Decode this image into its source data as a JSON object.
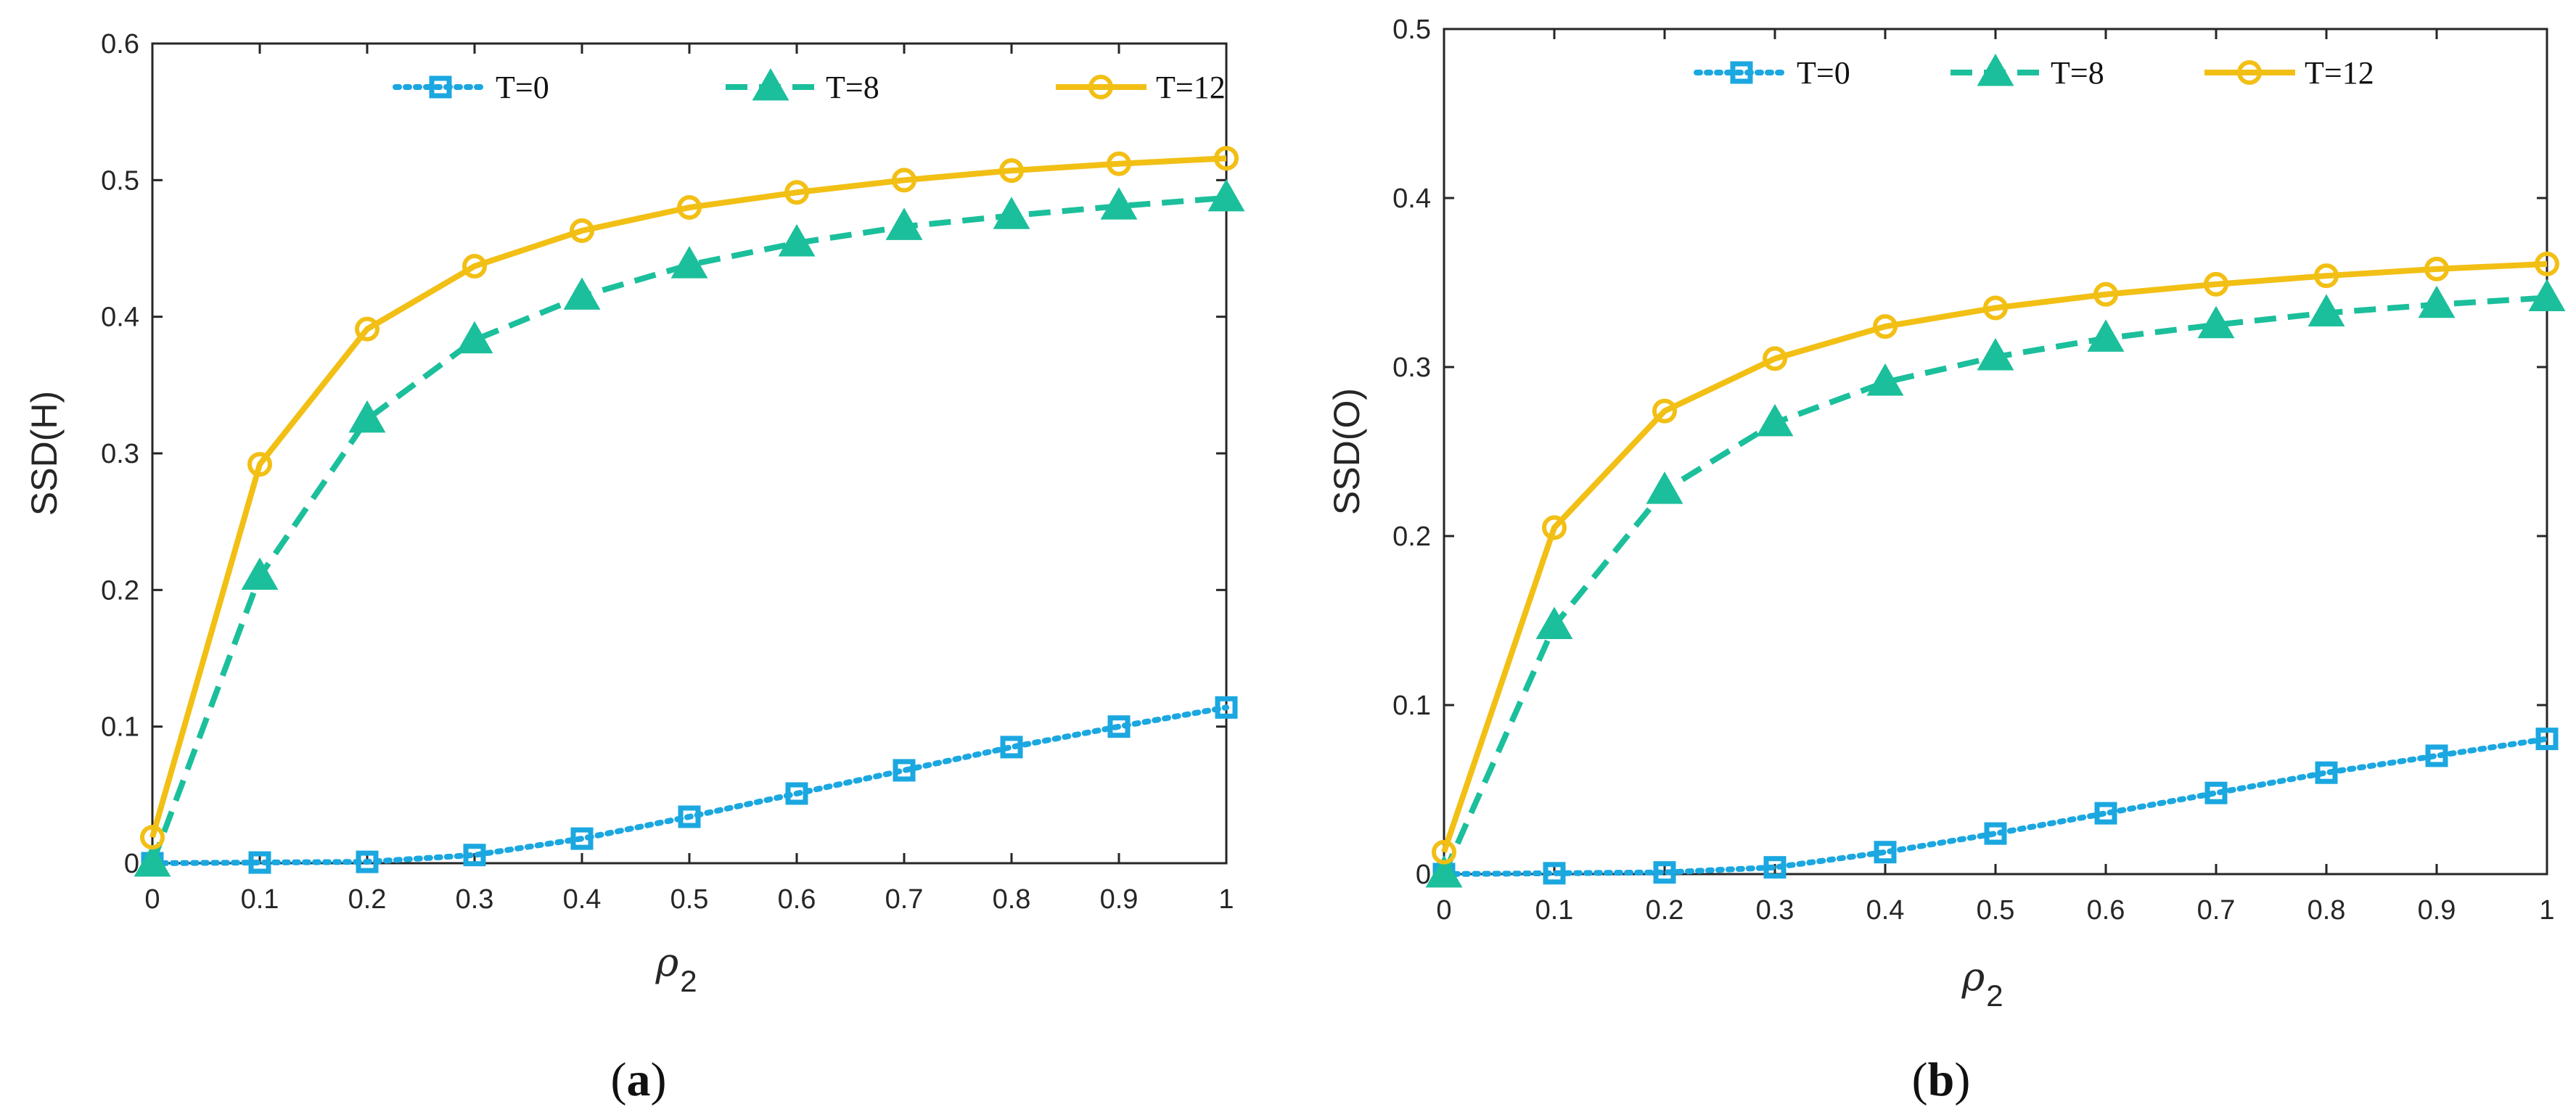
{
  "colors": {
    "T0": "#1ba7e0",
    "T8": "#1bbf9b",
    "T12": "#f2bf14",
    "axis": "#262626"
  },
  "chart_data": [
    {
      "type": "line",
      "panel": "a",
      "caption": {
        "open": "(",
        "letter": "a",
        "close": ")"
      },
      "xlabel": {
        "symbol": "ρ",
        "sub": "2"
      },
      "ylabel": "SSD(H)",
      "xlim": [
        0,
        1
      ],
      "ylim": [
        0,
        0.6
      ],
      "xticks": [
        "0",
        "0.1",
        "0.2",
        "0.3",
        "0.4",
        "0.5",
        "0.6",
        "0.7",
        "0.8",
        "0.9",
        "1"
      ],
      "yticks": [
        "0",
        "0.1",
        "0.2",
        "0.3",
        "0.4",
        "0.5",
        "0.6"
      ],
      "legend_position": "top-center",
      "x": [
        0,
        0.1,
        0.2,
        0.3,
        0.4,
        0.5,
        0.6,
        0.7,
        0.8,
        0.9,
        1.0
      ],
      "series": [
        {
          "name": "T=0",
          "marker": "square",
          "line": "dotted",
          "values": [
            0,
            0.0005,
            0.001,
            0.006,
            0.018,
            0.034,
            0.051,
            0.068,
            0.085,
            0.1,
            0.114
          ]
        },
        {
          "name": "T=8",
          "marker": "triangle",
          "line": "dashed",
          "values": [
            0,
            0.21,
            0.325,
            0.383,
            0.415,
            0.438,
            0.454,
            0.466,
            0.474,
            0.481,
            0.487
          ]
        },
        {
          "name": "T=12",
          "marker": "circle",
          "line": "solid",
          "values": [
            0.019,
            0.292,
            0.391,
            0.437,
            0.463,
            0.48,
            0.491,
            0.5,
            0.507,
            0.512,
            0.516
          ]
        }
      ]
    },
    {
      "type": "line",
      "panel": "b",
      "caption": {
        "open": "(",
        "letter": "b",
        "close": ")"
      },
      "xlabel": {
        "symbol": "ρ",
        "sub": "2"
      },
      "ylabel": "SSD(O)",
      "xlim": [
        0,
        1
      ],
      "ylim": [
        0,
        0.5
      ],
      "xticks": [
        "0",
        "0.1",
        "0.2",
        "0.3",
        "0.4",
        "0.5",
        "0.6",
        "0.7",
        "0.8",
        "0.9",
        "1"
      ],
      "yticks": [
        "0",
        "0.1",
        "0.2",
        "0.3",
        "0.4",
        "0.5"
      ],
      "legend_position": "top-center",
      "x": [
        0,
        0.1,
        0.2,
        0.3,
        0.4,
        0.5,
        0.6,
        0.7,
        0.8,
        0.9,
        1.0
      ],
      "series": [
        {
          "name": "T=0",
          "marker": "square",
          "line": "dotted",
          "values": [
            0,
            0.0005,
            0.001,
            0.004,
            0.013,
            0.024,
            0.036,
            0.048,
            0.06,
            0.07,
            0.08
          ]
        },
        {
          "name": "T=8",
          "marker": "triangle",
          "line": "dashed",
          "values": [
            0,
            0.147,
            0.227,
            0.267,
            0.291,
            0.306,
            0.317,
            0.325,
            0.332,
            0.337,
            0.341
          ]
        },
        {
          "name": "T=12",
          "marker": "circle",
          "line": "solid",
          "values": [
            0.013,
            0.205,
            0.274,
            0.305,
            0.324,
            0.335,
            0.343,
            0.349,
            0.354,
            0.358,
            0.361
          ]
        }
      ]
    }
  ]
}
